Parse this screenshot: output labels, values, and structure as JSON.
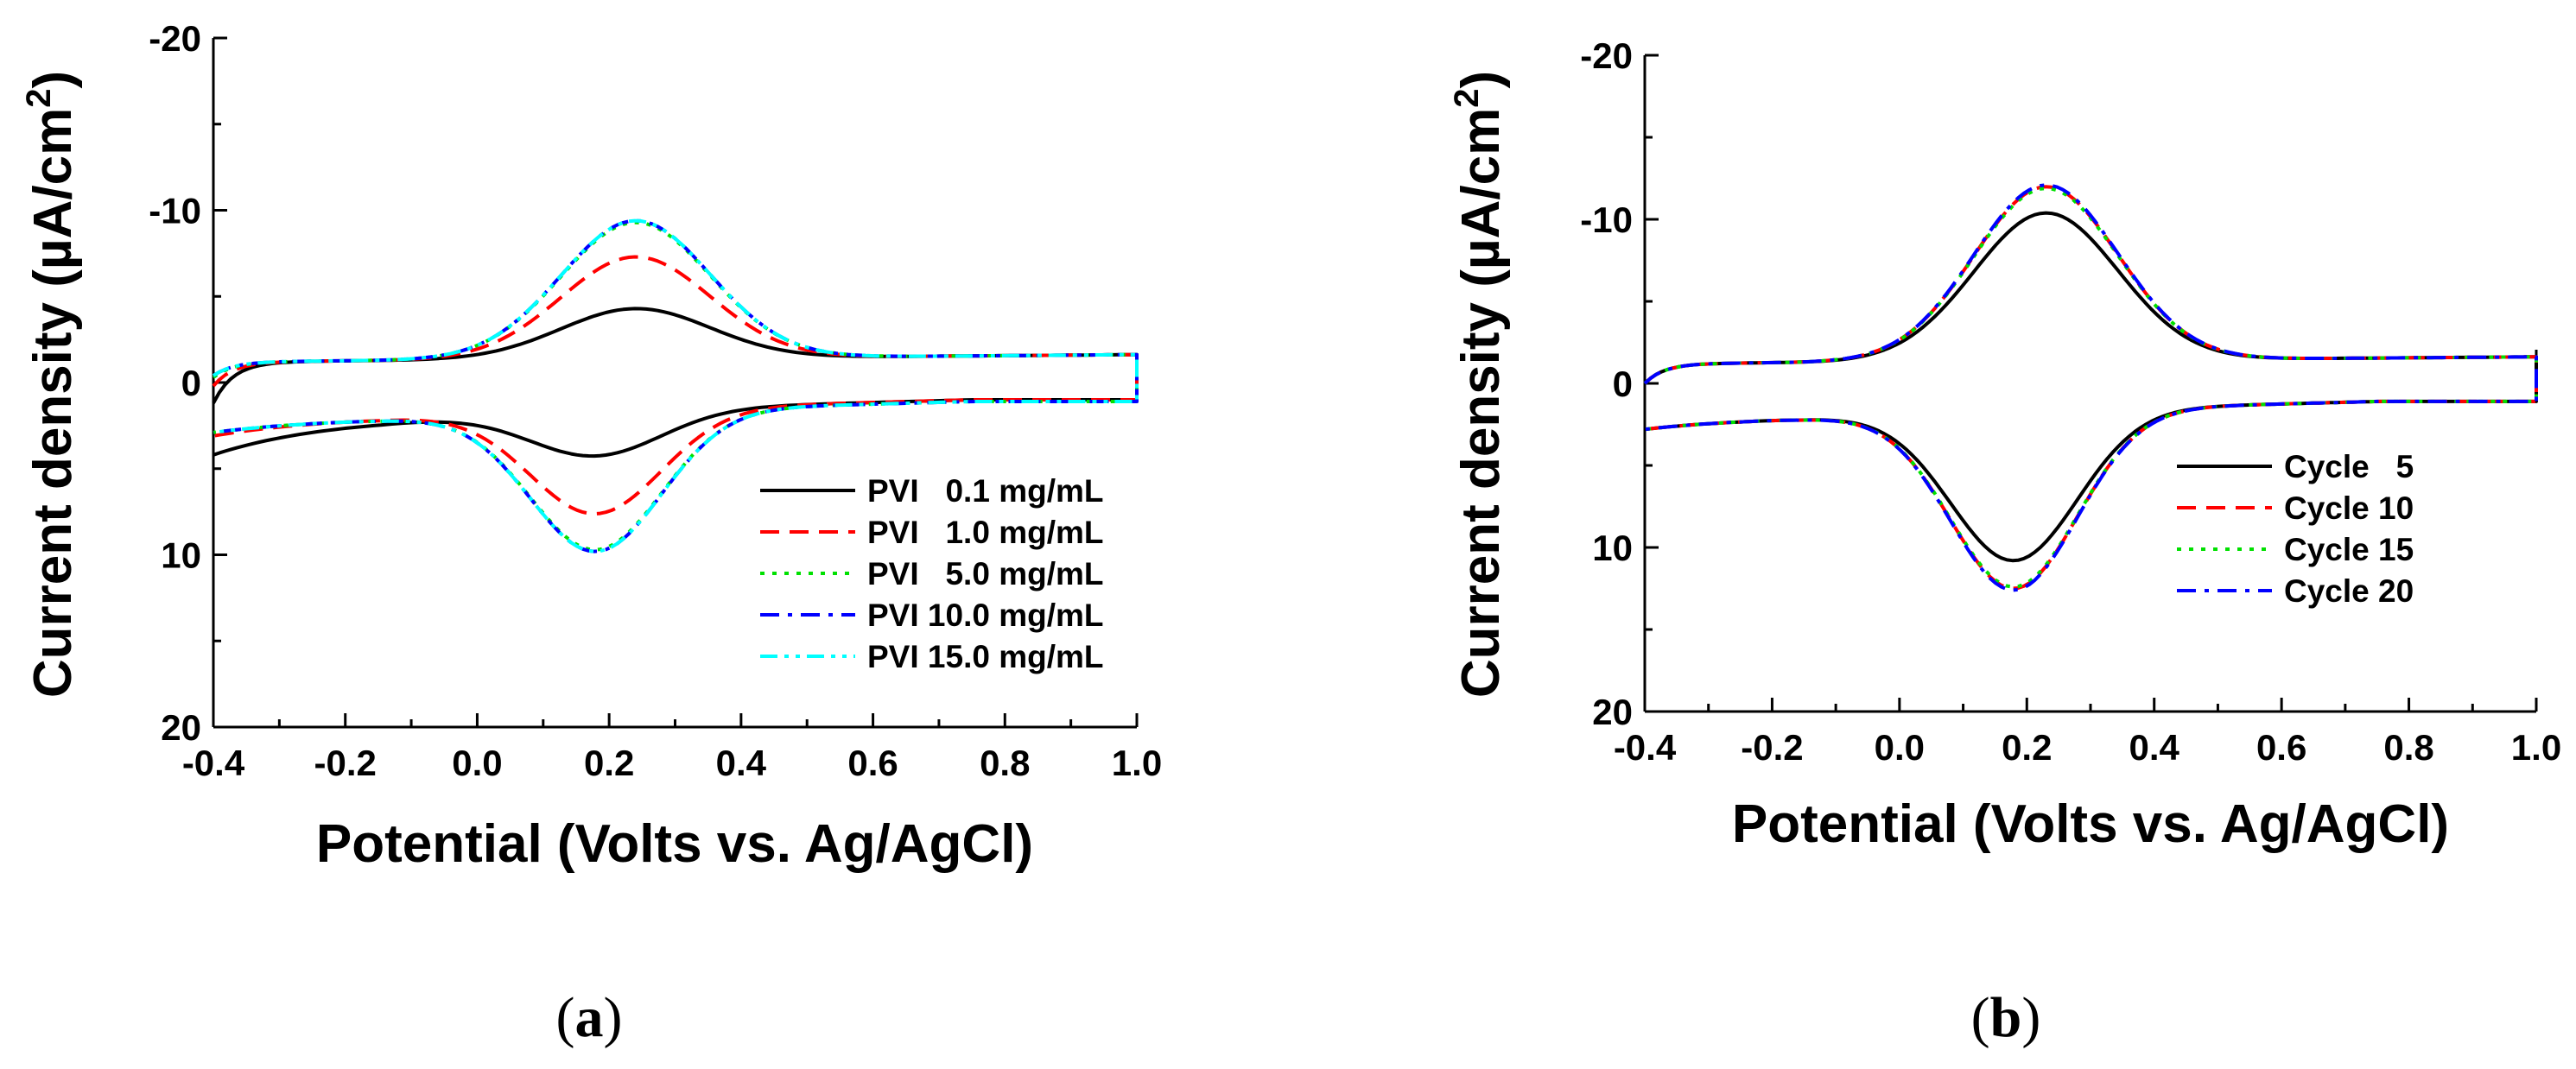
{
  "figure": {
    "panels": [
      {
        "label_a": "(",
        "label_b": "a",
        "label_c": ")"
      },
      {
        "label_a": "(",
        "label_b": "b",
        "label_c": ")"
      }
    ]
  },
  "chart_data": [
    {
      "type": "line",
      "panel": "(a)",
      "title": "",
      "xlabel": "Potential (Volts vs. Ag/AgCl)",
      "ylabel_main": "Current density (µA/cm",
      "ylabel_sup": "2",
      "ylabel_end": ")",
      "ylabel": "Current density (µA/cm2)",
      "xlim": [
        -0.4,
        1.0
      ],
      "ylim": [
        20,
        -20
      ],
      "y_inverted": true,
      "xticks": [
        "-0.4",
        "-0.2",
        "0.0",
        "0.2",
        "0.4",
        "0.6",
        "0.8",
        "1.0"
      ],
      "yticks": [
        "-20",
        "-10",
        "0",
        "10",
        "20"
      ],
      "legend_position": "lower-right",
      "series": [
        {
          "name": "PVI   0.1 mg/mL",
          "color": "#000000",
          "dash": "solid",
          "peak_ox": {
            "x": 0.24,
            "y": -4.2
          },
          "peak_red": {
            "x": 0.18,
            "y": 4.3
          },
          "ox_edge_left": 1.2,
          "red_edge_left": 4.2,
          "red_start": 1.9
        },
        {
          "name": "PVI   1.0 mg/mL",
          "color": "#ff0000",
          "dash": "dashed",
          "peak_ox": {
            "x": 0.24,
            "y": -7.2
          },
          "peak_red": {
            "x": 0.18,
            "y": 7.7
          },
          "ox_edge_left": 0.2,
          "red_edge_left": 3.1,
          "red_start": 1.9
        },
        {
          "name": "PVI   5.0 mg/mL",
          "color": "#00e000",
          "dash": "dotted",
          "peak_ox": {
            "x": 0.24,
            "y": -9.2
          },
          "peak_red": {
            "x": 0.18,
            "y": 9.8
          },
          "ox_edge_left": -0.3,
          "red_edge_left": 2.9,
          "red_start": 2.0
        },
        {
          "name": "PVI 10.0 mg/mL",
          "color": "#0000ff",
          "dash": "dashdot",
          "peak_ox": {
            "x": 0.24,
            "y": -9.3
          },
          "peak_red": {
            "x": 0.18,
            "y": 9.9
          },
          "ox_edge_left": -0.4,
          "red_edge_left": 2.9,
          "red_start": 2.0
        },
        {
          "name": "PVI 15.0 mg/mL",
          "color": "#00ffff",
          "dash": "dashdotdot",
          "peak_ox": {
            "x": 0.24,
            "y": -9.3
          },
          "peak_red": {
            "x": 0.18,
            "y": 9.9
          },
          "ox_edge_left": -0.4,
          "red_edge_left": 2.9,
          "red_start": 2.0
        }
      ]
    },
    {
      "type": "line",
      "panel": "(b)",
      "title": "",
      "xlabel": "Potential (Volts vs. Ag/AgCl)",
      "ylabel_main": "Current density (µA/cm",
      "ylabel_sup": "2",
      "ylabel_end": ")",
      "ylabel": "Current density (µA/cm2)",
      "xlim": [
        -0.4,
        1.0
      ],
      "ylim": [
        20,
        -20
      ],
      "y_inverted": true,
      "xticks": [
        "-0.4",
        "-0.2",
        "0.0",
        "0.2",
        "0.4",
        "0.6",
        "0.8",
        "1.0"
      ],
      "yticks": [
        "-20",
        "-10",
        "0",
        "10",
        "20"
      ],
      "legend_position": "lower-right",
      "series": [
        {
          "name": "Cycle   5",
          "color": "#000000",
          "dash": "solid",
          "peak_ox": {
            "x": 0.23,
            "y": -10.3
          },
          "peak_red": {
            "x": 0.18,
            "y": 10.9
          },
          "ox_edge_left": 0.0,
          "red_edge_left": 2.8,
          "red_start": 2.0
        },
        {
          "name": "Cycle 10",
          "color": "#ff0000",
          "dash": "dashed",
          "peak_ox": {
            "x": 0.23,
            "y": -11.9
          },
          "peak_red": {
            "x": 0.18,
            "y": 12.6
          },
          "ox_edge_left": 0.0,
          "red_edge_left": 2.8,
          "red_start": 2.0
        },
        {
          "name": "Cycle 15",
          "color": "#00e000",
          "dash": "dotted",
          "peak_ox": {
            "x": 0.23,
            "y": -11.8
          },
          "peak_red": {
            "x": 0.18,
            "y": 12.5
          },
          "ox_edge_left": 0.0,
          "red_edge_left": 2.8,
          "red_start": 2.0
        },
        {
          "name": "Cycle 20",
          "color": "#0000ff",
          "dash": "dashdot",
          "peak_ox": {
            "x": 0.23,
            "y": -12.0
          },
          "peak_red": {
            "x": 0.18,
            "y": 12.7
          },
          "ox_edge_left": 0.0,
          "red_edge_left": 2.8,
          "red_start": 2.0
        }
      ]
    }
  ]
}
